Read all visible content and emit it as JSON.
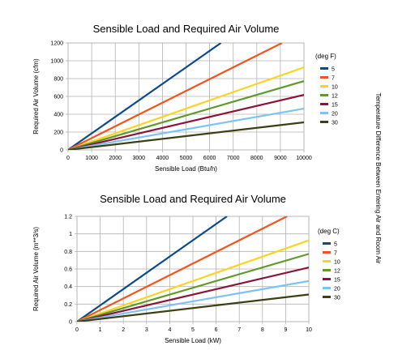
{
  "side_label": "Temperature Difference Between Entering Air and Room Air",
  "colors": {
    "5": "#0b4a8b",
    "7": "#f2541b",
    "10": "#ffd21f",
    "12": "#5f9a2b",
    "15": "#8a1538",
    "20": "#7cc3f2",
    "30": "#3f3f14"
  },
  "chart_data": [
    {
      "type": "line",
      "title": "Sensible Load and Required Air Volume",
      "xlabel": "Sensible Load (Btu/h)",
      "ylabel": "Required Air Volume (cfm)",
      "legend_title": "(deg F)",
      "xlim": [
        0,
        10000
      ],
      "ylim": [
        0,
        1200
      ],
      "xticks": [
        "0",
        "1000",
        "2000",
        "3000",
        "4000",
        "5000",
        "6000",
        "7000",
        "8000",
        "9000",
        "10000"
      ],
      "yticks": [
        "0",
        "200",
        "400",
        "600",
        "800",
        "1000",
        "1200"
      ],
      "grid": true,
      "legend_position": "right",
      "series": [
        {
          "name": "5",
          "x": [
            0,
            6480
          ],
          "y": [
            0,
            1200
          ]
        },
        {
          "name": "7",
          "x": [
            0,
            9070
          ],
          "y": [
            0,
            1200
          ]
        },
        {
          "name": "10",
          "x": [
            0,
            10000
          ],
          "y": [
            0,
            926
          ]
        },
        {
          "name": "12",
          "x": [
            0,
            10000
          ],
          "y": [
            0,
            772
          ]
        },
        {
          "name": "15",
          "x": [
            0,
            10000
          ],
          "y": [
            0,
            617
          ]
        },
        {
          "name": "20",
          "x": [
            0,
            10000
          ],
          "y": [
            0,
            463
          ]
        },
        {
          "name": "30",
          "x": [
            0,
            10000
          ],
          "y": [
            0,
            309
          ]
        }
      ]
    },
    {
      "type": "line",
      "title": "Sensible Load and Required Air Volume",
      "xlabel": "Sensible Load (kW)",
      "ylabel": "Required Air Volume (m**3/s)",
      "legend_title": "(deg C)",
      "xlim": [
        0,
        10
      ],
      "ylim": [
        0,
        1.2
      ],
      "xticks": [
        "0",
        "1",
        "2",
        "3",
        "4",
        "5",
        "6",
        "7",
        "8",
        "9",
        "10"
      ],
      "yticks": [
        "0",
        "0.2",
        "0.4",
        "0.6",
        "0.8",
        "1",
        "1.2"
      ],
      "grid": true,
      "legend_position": "right",
      "series": [
        {
          "name": "5",
          "x": [
            0,
            6.47
          ],
          "y": [
            0,
            1.2
          ]
        },
        {
          "name": "7",
          "x": [
            0,
            9.06
          ],
          "y": [
            0,
            1.2
          ]
        },
        {
          "name": "10",
          "x": [
            0,
            10
          ],
          "y": [
            0,
            0.926
          ]
        },
        {
          "name": "12",
          "x": [
            0,
            10
          ],
          "y": [
            0,
            0.772
          ]
        },
        {
          "name": "15",
          "x": [
            0,
            10
          ],
          "y": [
            0,
            0.617
          ]
        },
        {
          "name": "20",
          "x": [
            0,
            10
          ],
          "y": [
            0,
            0.463
          ]
        },
        {
          "name": "30",
          "x": [
            0,
            10
          ],
          "y": [
            0,
            0.309
          ]
        }
      ]
    }
  ]
}
